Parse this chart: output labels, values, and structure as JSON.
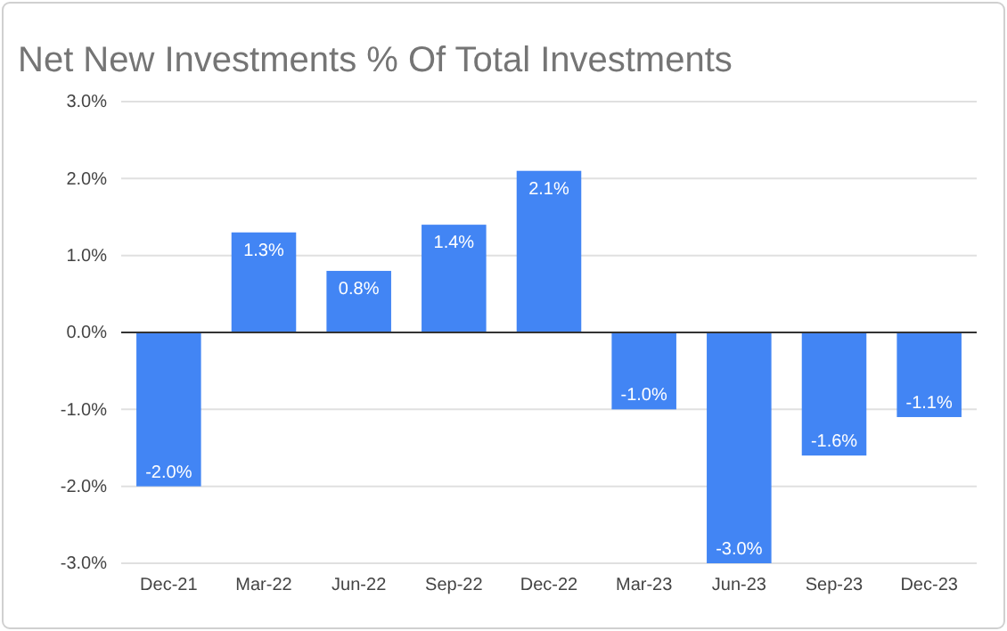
{
  "chart_data": {
    "type": "bar",
    "title": "Net New Investments % Of Total Investments",
    "categories": [
      "Dec-21",
      "Mar-22",
      "Jun-22",
      "Sep-22",
      "Dec-22",
      "Mar-23",
      "Jun-23",
      "Sep-23",
      "Dec-23"
    ],
    "values": [
      -2.0,
      1.3,
      0.8,
      1.4,
      2.1,
      -1.0,
      -3.0,
      -1.6,
      -1.1
    ],
    "value_labels": [
      "-2.0%",
      "1.3%",
      "0.8%",
      "1.4%",
      "2.1%",
      "-1.0%",
      "-3.0%",
      "-1.6%",
      "-1.1%"
    ],
    "color": "#4285f4",
    "ylim": [
      -3,
      3
    ],
    "yticks": [
      {
        "value": -3,
        "label": "-3.0%"
      },
      {
        "value": -2,
        "label": "-2.0%"
      },
      {
        "value": -1,
        "label": "-1.0%"
      },
      {
        "value": 0,
        "label": "0.0%"
      },
      {
        "value": 1,
        "label": "1.0%"
      },
      {
        "value": 2,
        "label": "2.0%"
      },
      {
        "value": 3,
        "label": "3.0%"
      }
    ],
    "grid": "y"
  }
}
